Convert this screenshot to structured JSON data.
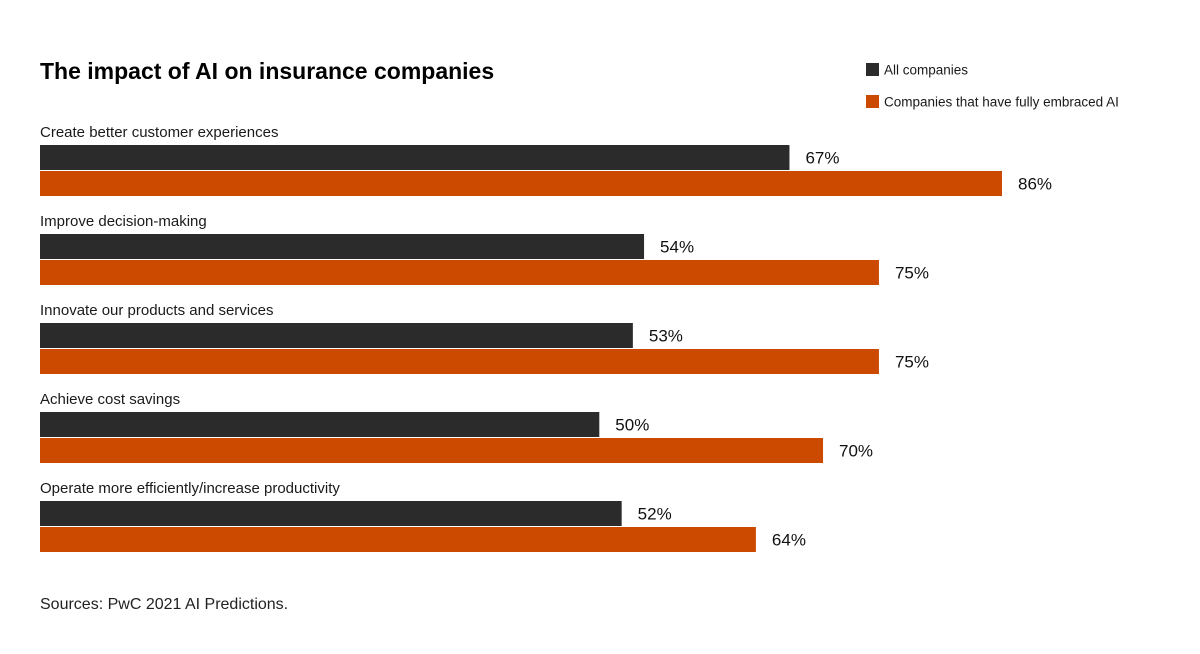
{
  "chart_data": {
    "type": "bar",
    "orientation": "horizontal",
    "title": "The impact of AI on insurance companies",
    "categories": [
      "Create better customer experiences",
      "Improve decision-making",
      "Innovate our products and services",
      "Achieve cost savings",
      "Operate more efficiently/increase productivity"
    ],
    "series": [
      {
        "name": "All companies",
        "color": "#2b2b2b",
        "values": [
          67,
          54,
          53,
          50,
          52
        ]
      },
      {
        "name": "Companies that have fully embraced AI",
        "color": "#cc4a00",
        "values": [
          86,
          75,
          75,
          70,
          64
        ]
      }
    ],
    "value_suffix": "%",
    "xlim": [
      0,
      100
    ],
    "grid": false,
    "legend_position": "top-right",
    "xlabel": "",
    "ylabel": ""
  },
  "source_note": "Sources: PwC 2021 AI Predictions."
}
